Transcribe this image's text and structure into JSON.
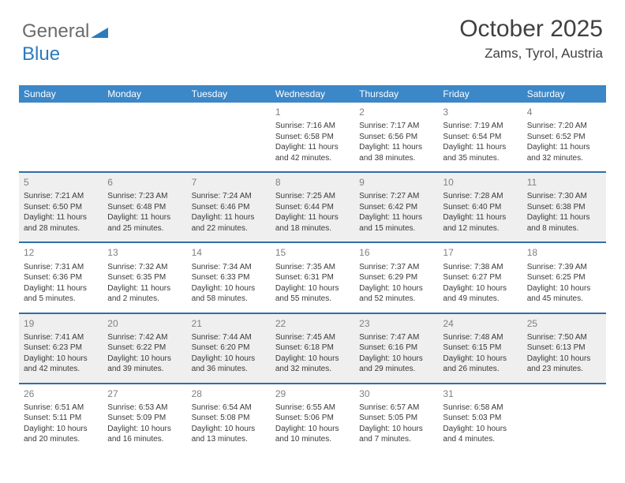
{
  "logo": {
    "text1": "General",
    "text2": "Blue"
  },
  "header": {
    "month": "October 2025",
    "location": "Zams, Tyrol, Austria"
  },
  "colors": {
    "header_bar": "#3b87c8",
    "header_text": "#ffffff",
    "week_divider": "#2f6fa8",
    "gray_bg": "#efefef",
    "logo_gray": "#6b6b6b",
    "logo_blue": "#2b7bbf"
  },
  "calendar": {
    "days_of_week": [
      "Sunday",
      "Monday",
      "Tuesday",
      "Wednesday",
      "Thursday",
      "Friday",
      "Saturday"
    ],
    "weeks": [
      [
        null,
        null,
        null,
        {
          "n": "1",
          "sr": "7:16 AM",
          "ss": "6:58 PM",
          "dl": "11 hours and 42 minutes."
        },
        {
          "n": "2",
          "sr": "7:17 AM",
          "ss": "6:56 PM",
          "dl": "11 hours and 38 minutes."
        },
        {
          "n": "3",
          "sr": "7:19 AM",
          "ss": "6:54 PM",
          "dl": "11 hours and 35 minutes."
        },
        {
          "n": "4",
          "sr": "7:20 AM",
          "ss": "6:52 PM",
          "dl": "11 hours and 32 minutes."
        }
      ],
      [
        {
          "n": "5",
          "sr": "7:21 AM",
          "ss": "6:50 PM",
          "dl": "11 hours and 28 minutes."
        },
        {
          "n": "6",
          "sr": "7:23 AM",
          "ss": "6:48 PM",
          "dl": "11 hours and 25 minutes."
        },
        {
          "n": "7",
          "sr": "7:24 AM",
          "ss": "6:46 PM",
          "dl": "11 hours and 22 minutes."
        },
        {
          "n": "8",
          "sr": "7:25 AM",
          "ss": "6:44 PM",
          "dl": "11 hours and 18 minutes."
        },
        {
          "n": "9",
          "sr": "7:27 AM",
          "ss": "6:42 PM",
          "dl": "11 hours and 15 minutes."
        },
        {
          "n": "10",
          "sr": "7:28 AM",
          "ss": "6:40 PM",
          "dl": "11 hours and 12 minutes."
        },
        {
          "n": "11",
          "sr": "7:30 AM",
          "ss": "6:38 PM",
          "dl": "11 hours and 8 minutes."
        }
      ],
      [
        {
          "n": "12",
          "sr": "7:31 AM",
          "ss": "6:36 PM",
          "dl": "11 hours and 5 minutes."
        },
        {
          "n": "13",
          "sr": "7:32 AM",
          "ss": "6:35 PM",
          "dl": "11 hours and 2 minutes."
        },
        {
          "n": "14",
          "sr": "7:34 AM",
          "ss": "6:33 PM",
          "dl": "10 hours and 58 minutes."
        },
        {
          "n": "15",
          "sr": "7:35 AM",
          "ss": "6:31 PM",
          "dl": "10 hours and 55 minutes."
        },
        {
          "n": "16",
          "sr": "7:37 AM",
          "ss": "6:29 PM",
          "dl": "10 hours and 52 minutes."
        },
        {
          "n": "17",
          "sr": "7:38 AM",
          "ss": "6:27 PM",
          "dl": "10 hours and 49 minutes."
        },
        {
          "n": "18",
          "sr": "7:39 AM",
          "ss": "6:25 PM",
          "dl": "10 hours and 45 minutes."
        }
      ],
      [
        {
          "n": "19",
          "sr": "7:41 AM",
          "ss": "6:23 PM",
          "dl": "10 hours and 42 minutes."
        },
        {
          "n": "20",
          "sr": "7:42 AM",
          "ss": "6:22 PM",
          "dl": "10 hours and 39 minutes."
        },
        {
          "n": "21",
          "sr": "7:44 AM",
          "ss": "6:20 PM",
          "dl": "10 hours and 36 minutes."
        },
        {
          "n": "22",
          "sr": "7:45 AM",
          "ss": "6:18 PM",
          "dl": "10 hours and 32 minutes."
        },
        {
          "n": "23",
          "sr": "7:47 AM",
          "ss": "6:16 PM",
          "dl": "10 hours and 29 minutes."
        },
        {
          "n": "24",
          "sr": "7:48 AM",
          "ss": "6:15 PM",
          "dl": "10 hours and 26 minutes."
        },
        {
          "n": "25",
          "sr": "7:50 AM",
          "ss": "6:13 PM",
          "dl": "10 hours and 23 minutes."
        }
      ],
      [
        {
          "n": "26",
          "sr": "6:51 AM",
          "ss": "5:11 PM",
          "dl": "10 hours and 20 minutes."
        },
        {
          "n": "27",
          "sr": "6:53 AM",
          "ss": "5:09 PM",
          "dl": "10 hours and 16 minutes."
        },
        {
          "n": "28",
          "sr": "6:54 AM",
          "ss": "5:08 PM",
          "dl": "10 hours and 13 minutes."
        },
        {
          "n": "29",
          "sr": "6:55 AM",
          "ss": "5:06 PM",
          "dl": "10 hours and 10 minutes."
        },
        {
          "n": "30",
          "sr": "6:57 AM",
          "ss": "5:05 PM",
          "dl": "10 hours and 7 minutes."
        },
        {
          "n": "31",
          "sr": "6:58 AM",
          "ss": "5:03 PM",
          "dl": "10 hours and 4 minutes."
        },
        null
      ]
    ],
    "labels": {
      "sunrise": "Sunrise: ",
      "sunset": "Sunset: ",
      "daylight": "Daylight: "
    }
  }
}
